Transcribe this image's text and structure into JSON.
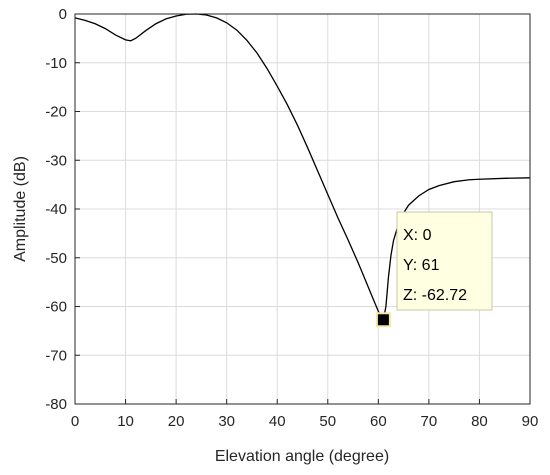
{
  "chart_data": {
    "type": "line",
    "xlabel": "Elevation angle (degree)",
    "ylabel": "Amplitude (dB)",
    "xlim": [
      0,
      90
    ],
    "ylim": [
      -80,
      0
    ],
    "x_ticks": [
      0,
      10,
      20,
      30,
      40,
      50,
      60,
      70,
      80,
      90
    ],
    "y_ticks": [
      0,
      -10,
      -20,
      -30,
      -40,
      -50,
      -60,
      -70,
      -80
    ],
    "grid": true,
    "series": [
      {
        "points": [
          [
            0,
            -0.8
          ],
          [
            2,
            -1.3
          ],
          [
            4,
            -2.0
          ],
          [
            6,
            -3.0
          ],
          [
            8,
            -4.3
          ],
          [
            10,
            -5.3
          ],
          [
            11,
            -5.5
          ],
          [
            12,
            -5.0
          ],
          [
            14,
            -3.4
          ],
          [
            16,
            -2.0
          ],
          [
            18,
            -1.0
          ],
          [
            20,
            -0.4
          ],
          [
            22,
            -0.05
          ],
          [
            24,
            0
          ],
          [
            26,
            -0.2
          ],
          [
            28,
            -0.8
          ],
          [
            30,
            -1.8
          ],
          [
            32,
            -3.3
          ],
          [
            34,
            -5.4
          ],
          [
            36,
            -8.0
          ],
          [
            38,
            -11.2
          ],
          [
            40,
            -14.8
          ],
          [
            42,
            -18.6
          ],
          [
            44,
            -22.8
          ],
          [
            46,
            -27.4
          ],
          [
            48,
            -32.2
          ],
          [
            50,
            -37.0
          ],
          [
            52,
            -41.8
          ],
          [
            54,
            -46.3
          ],
          [
            56,
            -51.0
          ],
          [
            57,
            -53.5
          ],
          [
            58,
            -56.0
          ],
          [
            59,
            -58.5
          ],
          [
            60,
            -61.0
          ],
          [
            61,
            -62.72
          ],
          [
            61.5,
            -60.0
          ],
          [
            62,
            -54.0
          ],
          [
            62.5,
            -49.5
          ],
          [
            63,
            -46.5
          ],
          [
            64,
            -43.0
          ],
          [
            65,
            -40.8
          ],
          [
            66,
            -39.2
          ],
          [
            68,
            -37.3
          ],
          [
            70,
            -36.0
          ],
          [
            72,
            -35.2
          ],
          [
            75,
            -34.4
          ],
          [
            78,
            -34.0
          ],
          [
            80,
            -33.9
          ],
          [
            85,
            -33.7
          ],
          [
            90,
            -33.6
          ]
        ]
      }
    ],
    "datatip": {
      "x": 61,
      "y": -62.72,
      "lines": [
        "X: 0",
        "Y: 61",
        "Z: -62.72"
      ]
    }
  }
}
